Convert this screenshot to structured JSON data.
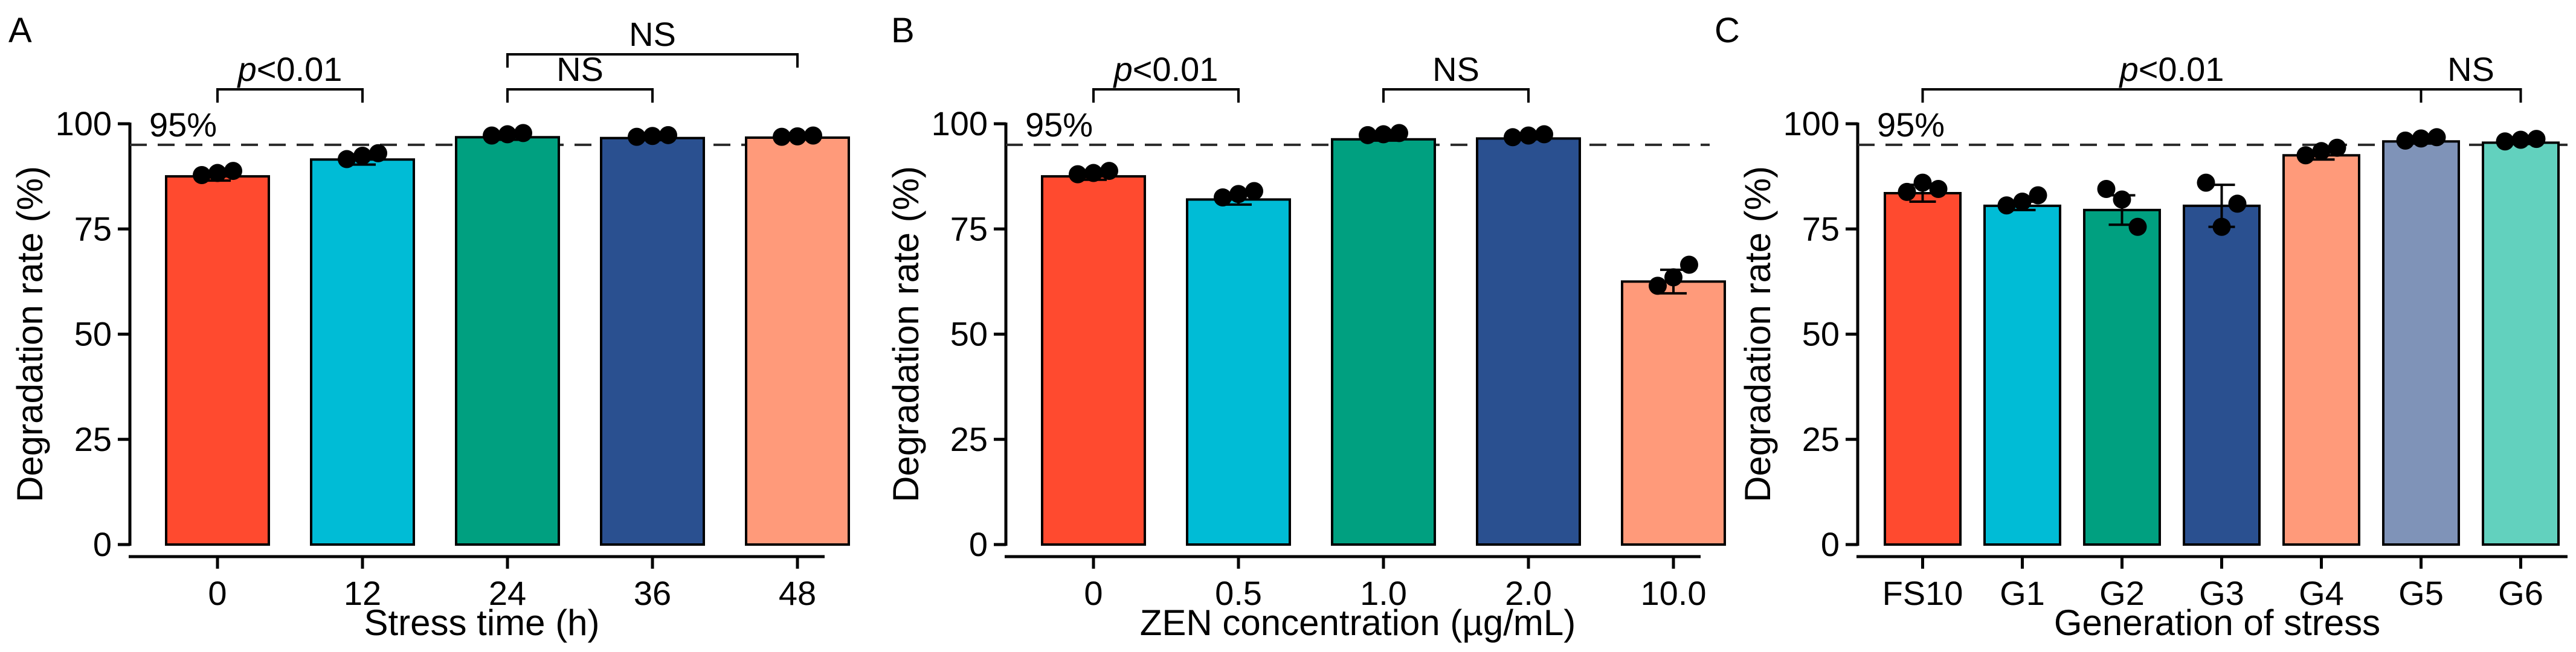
{
  "chart_data": [
    {
      "panel": "A",
      "type": "bar",
      "categories": [
        "0",
        "12",
        "24",
        "36",
        "48"
      ],
      "values": [
        87.5,
        91.5,
        96.8,
        96.6,
        96.7
      ],
      "errors": [
        1.0,
        1.2,
        0.6,
        0.5,
        0.4
      ],
      "points": [
        [
          87.8,
          88.3,
          88.8
        ],
        [
          91.6,
          92.4,
          93.0
        ],
        [
          97.2,
          97.5,
          97.8
        ],
        [
          96.9,
          97.1,
          97.3
        ],
        [
          96.9,
          97.0,
          97.2
        ]
      ],
      "colors": [
        "#ff4a2f",
        "#00bcd6",
        "#00a080",
        "#2a5090",
        "#ff9a7a"
      ],
      "xlabel": "Stress time (h)",
      "ylabel": "Degradation rate (%)",
      "ylim": [
        0,
        100
      ],
      "yticks": [
        "0",
        "25",
        "50",
        "75",
        "100"
      ],
      "reference": {
        "value": 95,
        "label": "95%"
      },
      "brackets": [
        {
          "from": 0,
          "to": 1,
          "level": 1,
          "label_plain": "",
          "label_italic": "p",
          "label_rest": "<0.01"
        },
        {
          "from": 2,
          "to": 3,
          "level": 1,
          "label_plain": "NS",
          "label_italic": "",
          "label_rest": ""
        },
        {
          "from": 2,
          "to": 4,
          "level": 2,
          "label_plain": "NS",
          "label_italic": "",
          "label_rest": ""
        }
      ]
    },
    {
      "panel": "B",
      "type": "bar",
      "categories": [
        "0",
        "0.5",
        "1.0",
        "2.0",
        "10.0"
      ],
      "values": [
        87.5,
        82.0,
        96.3,
        96.5,
        62.5
      ],
      "errors": [
        0.8,
        1.2,
        0.3,
        0.2,
        2.8
      ],
      "points": [
        [
          88.0,
          88.3,
          88.8
        ],
        [
          82.5,
          83.3,
          84.0
        ],
        [
          97.3,
          97.5,
          97.8
        ],
        [
          96.8,
          97.2,
          97.5
        ],
        [
          61.5,
          63.5,
          66.5
        ]
      ],
      "colors": [
        "#ff4a2f",
        "#00bcd6",
        "#00a080",
        "#2a5090",
        "#ff9a7a"
      ],
      "xlabel": "ZEN concentration (µg/mL)",
      "ylabel": "Degradation rate (%)",
      "ylim": [
        0,
        100
      ],
      "yticks": [
        "0",
        "25",
        "50",
        "75",
        "100"
      ],
      "reference": {
        "value": 95,
        "label": "95%"
      },
      "brackets": [
        {
          "from": 0,
          "to": 1,
          "level": 1,
          "label_plain": "",
          "label_italic": "p",
          "label_rest": "<0.01"
        },
        {
          "from": 2,
          "to": 3,
          "level": 1,
          "label_plain": "NS",
          "label_italic": "",
          "label_rest": ""
        }
      ]
    },
    {
      "panel": "C",
      "type": "bar",
      "categories": [
        "FS10",
        "G1",
        "G2",
        "G3",
        "G4",
        "G5",
        "G6"
      ],
      "values": [
        83.5,
        80.5,
        79.5,
        80.5,
        92.5,
        95.8,
        95.5
      ],
      "errors": [
        2.0,
        1.0,
        3.5,
        5.0,
        1.0,
        0.5,
        0.3
      ],
      "points": [
        [
          83.8,
          86.0,
          84.5
        ],
        [
          80.6,
          81.5,
          83.0
        ],
        [
          84.5,
          82.0,
          75.5
        ],
        [
          86.0,
          75.5,
          81.0
        ],
        [
          92.5,
          93.5,
          94.3
        ],
        [
          96.0,
          96.5,
          96.8
        ],
        [
          95.8,
          96.2,
          96.4
        ]
      ],
      "colors": [
        "#ff4a2f",
        "#00bcd6",
        "#00a080",
        "#2a5090",
        "#ff9a7a",
        "#7f93b8",
        "#62d1be"
      ],
      "xlabel": "Generation of stress",
      "ylabel": "Degradation rate (%)",
      "ylim": [
        0,
        100
      ],
      "yticks": [
        "0",
        "25",
        "50",
        "75",
        "100"
      ],
      "reference": {
        "value": 95,
        "label": "95%"
      },
      "brackets": [
        {
          "from": 0,
          "to": 5,
          "level": 1,
          "label_plain": "",
          "label_italic": "p",
          "label_rest": "<0.01"
        },
        {
          "from": 5,
          "to": 6,
          "level": 1,
          "label_plain": "NS",
          "label_italic": "",
          "label_rest": ""
        }
      ]
    }
  ]
}
